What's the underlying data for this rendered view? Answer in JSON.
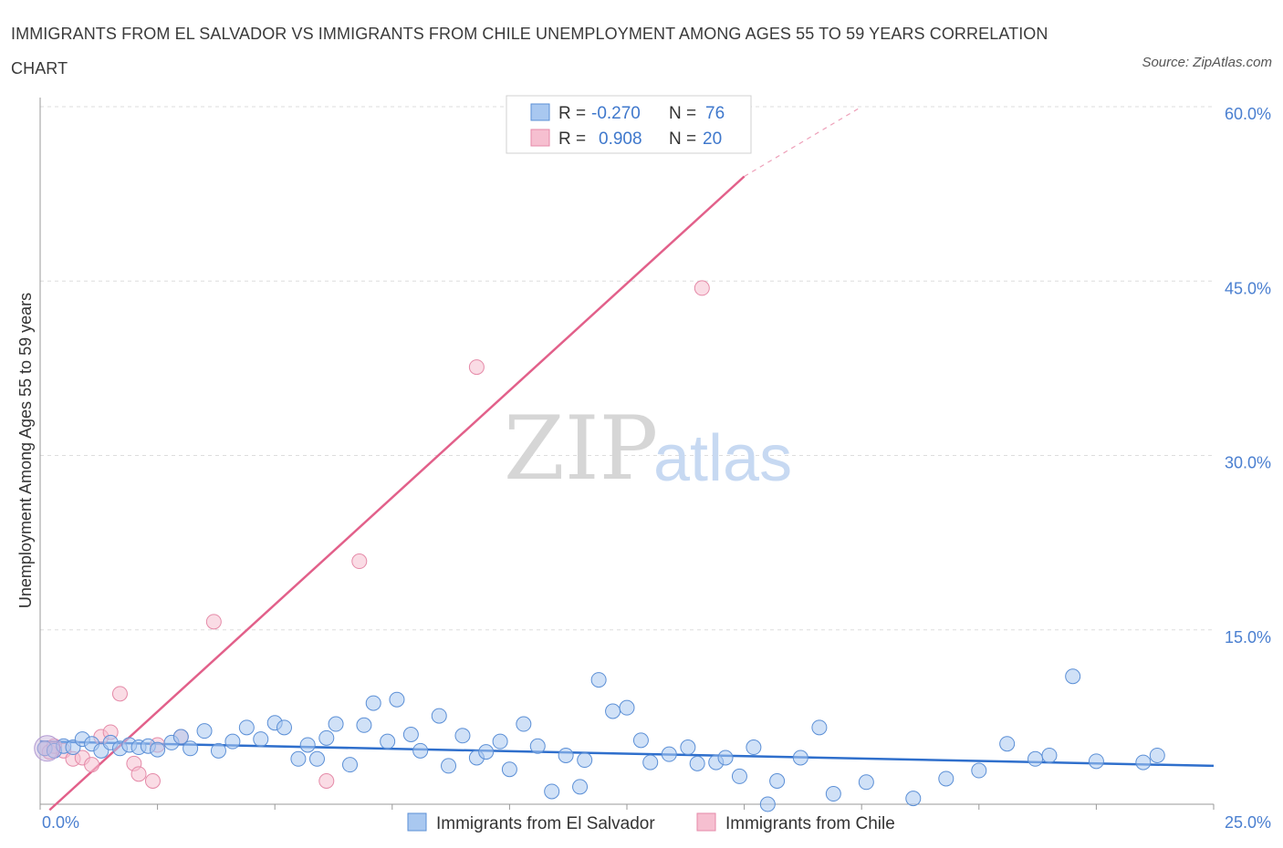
{
  "header": {
    "title": "IMMIGRANTS FROM EL SALVADOR VS IMMIGRANTS FROM CHILE UNEMPLOYMENT AMONG AGES 55 TO 59 YEARS CORRELATION CHART",
    "source": "Source: ZipAtlas.com"
  },
  "watermark": {
    "zip": "ZIP",
    "atlas": "atlas"
  },
  "colors": {
    "blue_fill": "#a9c8f0",
    "blue_stroke": "#5b8fd6",
    "blue_line": "#2f6fcc",
    "pink_fill": "#f6bfd0",
    "pink_stroke": "#e58aa8",
    "pink_line": "#e2608a",
    "tick_text": "#4a7fd0",
    "grid": "#dddddd"
  },
  "chart_data": {
    "type": "scatter",
    "title": "IMMIGRANTS FROM EL SALVADOR VS IMMIGRANTS FROM CHILE UNEMPLOYMENT AMONG AGES 55 TO 59 YEARS CORRELATION CHART",
    "xlabel": "",
    "ylabel": "Unemployment Among Ages 55 to 59 years",
    "xlim": [
      0,
      25
    ],
    "ylim": [
      0,
      60
    ],
    "x_tick_labels": [
      "0.0%",
      "25.0%"
    ],
    "y_ticks": [
      15,
      30,
      45,
      60
    ],
    "y_tick_labels": [
      "15.0%",
      "30.0%",
      "45.0%",
      "60.0%"
    ],
    "grid": true,
    "legend_position": "top-center",
    "series": [
      {
        "name": "Immigrants from El Salvador",
        "R": "-0.270",
        "N": "76",
        "trend": {
          "x": [
            0,
            25
          ],
          "y": [
            5.4,
            3.3
          ]
        },
        "points": [
          [
            0.1,
            4.8
          ],
          [
            0.3,
            4.6
          ],
          [
            0.5,
            5.0
          ],
          [
            0.7,
            4.9
          ],
          [
            0.9,
            5.6
          ],
          [
            1.1,
            5.2
          ],
          [
            1.3,
            4.6
          ],
          [
            1.5,
            5.3
          ],
          [
            1.7,
            4.8
          ],
          [
            1.9,
            5.1
          ],
          [
            2.1,
            4.9
          ],
          [
            2.3,
            5.0
          ],
          [
            2.5,
            4.7
          ],
          [
            2.8,
            5.3
          ],
          [
            3.0,
            5.8
          ],
          [
            3.2,
            4.8
          ],
          [
            3.5,
            6.3
          ],
          [
            3.8,
            4.6
          ],
          [
            4.1,
            5.4
          ],
          [
            4.4,
            6.6
          ],
          [
            4.7,
            5.6
          ],
          [
            5.0,
            7.0
          ],
          [
            5.2,
            6.6
          ],
          [
            5.5,
            3.9
          ],
          [
            5.7,
            5.1
          ],
          [
            5.9,
            3.9
          ],
          [
            6.1,
            5.7
          ],
          [
            6.3,
            6.9
          ],
          [
            6.6,
            3.4
          ],
          [
            6.9,
            6.8
          ],
          [
            7.1,
            8.7
          ],
          [
            7.4,
            5.4
          ],
          [
            7.6,
            9.0
          ],
          [
            7.9,
            6.0
          ],
          [
            8.1,
            4.6
          ],
          [
            8.5,
            7.6
          ],
          [
            8.7,
            3.3
          ],
          [
            9.0,
            5.9
          ],
          [
            9.3,
            4.0
          ],
          [
            9.5,
            4.5
          ],
          [
            9.8,
            5.4
          ],
          [
            10.0,
            3.0
          ],
          [
            10.3,
            6.9
          ],
          [
            10.6,
            5.0
          ],
          [
            10.9,
            1.1
          ],
          [
            11.2,
            4.2
          ],
          [
            11.5,
            1.5
          ],
          [
            11.6,
            3.8
          ],
          [
            11.9,
            10.7
          ],
          [
            12.2,
            8.0
          ],
          [
            12.5,
            8.3
          ],
          [
            12.8,
            5.5
          ],
          [
            13.0,
            3.6
          ],
          [
            13.4,
            4.3
          ],
          [
            13.8,
            4.9
          ],
          [
            14.0,
            3.5
          ],
          [
            14.4,
            3.6
          ],
          [
            14.6,
            4.0
          ],
          [
            14.9,
            2.4
          ],
          [
            15.2,
            4.9
          ],
          [
            15.5,
            0.0
          ],
          [
            15.7,
            2.0
          ],
          [
            16.2,
            4.0
          ],
          [
            16.6,
            6.6
          ],
          [
            16.9,
            0.9
          ],
          [
            17.6,
            1.9
          ],
          [
            18.6,
            0.5
          ],
          [
            19.3,
            2.2
          ],
          [
            20.0,
            2.9
          ],
          [
            20.6,
            5.2
          ],
          [
            21.2,
            3.9
          ],
          [
            21.5,
            4.2
          ],
          [
            22.0,
            11.0
          ],
          [
            22.5,
            3.7
          ],
          [
            23.5,
            3.6
          ],
          [
            23.8,
            4.2
          ]
        ]
      },
      {
        "name": "Immigrants from Chile",
        "R": "0.908",
        "N": "20",
        "trend": {
          "x": [
            0.2,
            15.0
          ],
          "y": [
            -0.5,
            54.0
          ]
        },
        "trend_dashed": {
          "x": [
            15.0,
            17.5
          ],
          "y": [
            54.0,
            60.0
          ]
        },
        "points": [
          [
            0.1,
            4.8
          ],
          [
            0.2,
            4.5
          ],
          [
            0.5,
            4.6
          ],
          [
            0.7,
            3.9
          ],
          [
            0.9,
            4.0
          ],
          [
            1.1,
            3.4
          ],
          [
            1.3,
            5.8
          ],
          [
            1.5,
            6.2
          ],
          [
            1.7,
            9.5
          ],
          [
            2.0,
            3.5
          ],
          [
            2.1,
            2.6
          ],
          [
            2.4,
            2.0
          ],
          [
            2.5,
            5.1
          ],
          [
            3.0,
            5.8
          ],
          [
            3.7,
            15.7
          ],
          [
            6.1,
            2.0
          ],
          [
            6.8,
            20.9
          ],
          [
            9.3,
            37.6
          ],
          [
            14.1,
            44.4
          ],
          [
            0.3,
            5.0
          ]
        ]
      }
    ]
  },
  "legend": {
    "row1": {
      "r_label": "R =",
      "r_value": "-0.270",
      "n_label": "N =",
      "n_value": "76"
    },
    "row2": {
      "r_label": "R =",
      "r_value": "0.908",
      "n_label": "N =",
      "n_value": "20"
    }
  },
  "bottom_legend": {
    "item1": "Immigrants from El Salvador",
    "item2": "Immigrants from Chile"
  }
}
